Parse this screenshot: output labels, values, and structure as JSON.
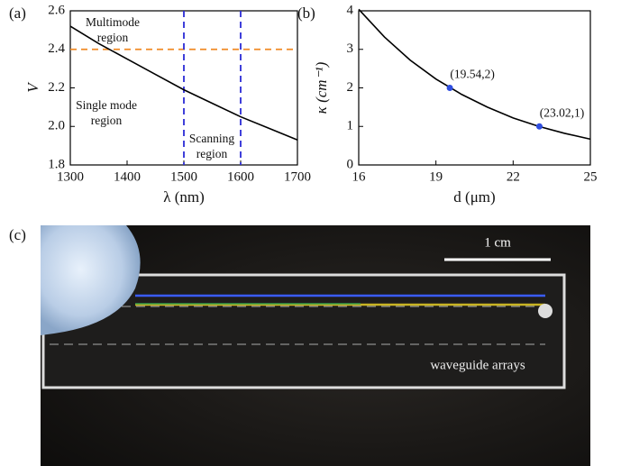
{
  "chart_data": [
    {
      "type": "line",
      "label": "(a)",
      "x_label": "λ (nm)",
      "y_label": "V",
      "x": [
        1300,
        1350,
        1400,
        1450,
        1500,
        1550,
        1600,
        1650,
        1700
      ],
      "series": [
        {
          "color": "#000000",
          "values": [
            2.52,
            2.43,
            2.35,
            2.27,
            2.19,
            2.12,
            2.05,
            1.99,
            1.93
          ]
        }
      ],
      "xlim": [
        1300,
        1700
      ],
      "xticks": [
        1300,
        1400,
        1500,
        1600,
        1700
      ],
      "ylim": [
        1.8,
        2.6
      ],
      "yticks": [
        1.8,
        {
          "value": 2,
          "label": "2.0"
        },
        2.2,
        2.4,
        2.6
      ],
      "hlines": [
        {
          "value": 2.4,
          "color": "#f08a24"
        }
      ],
      "vlines": [
        {
          "value": 1500,
          "color": "#2b2bd6"
        },
        {
          "value": 1600,
          "color": "#2b2bd6"
        }
      ],
      "annotations": [
        [
          "Multimode",
          "region"
        ],
        [
          "Single mode",
          "region"
        ],
        [
          "Scanning",
          "region"
        ]
      ]
    },
    {
      "type": "line",
      "label": "(b)",
      "x_label": "d (μm)",
      "y_label": "κ (cm⁻¹)",
      "x": [
        16,
        17,
        18,
        19,
        20,
        21,
        22,
        23,
        24,
        25
      ],
      "series": [
        {
          "color": "#000000",
          "values": [
            4.04,
            3.32,
            2.72,
            2.23,
            1.83,
            1.5,
            1.22,
            1.0,
            0.82,
            0.67
          ]
        }
      ],
      "points": {
        "x": [
          19.54,
          23.02
        ],
        "values": [
          2,
          1
        ],
        "value_labels": [
          "(19.54,2)",
          "(23.02,1)"
        ],
        "color": "#2f4ee0"
      },
      "xlim": [
        16,
        25
      ],
      "xticks": [
        16,
        19,
        22,
        25
      ],
      "ylim": [
        0,
        4
      ],
      "yticks": [
        0,
        1,
        2,
        3,
        4
      ]
    }
  ],
  "photo": {
    "label": "(c)",
    "scale_bar": "1 cm",
    "annotation": "waveguide arrays"
  }
}
